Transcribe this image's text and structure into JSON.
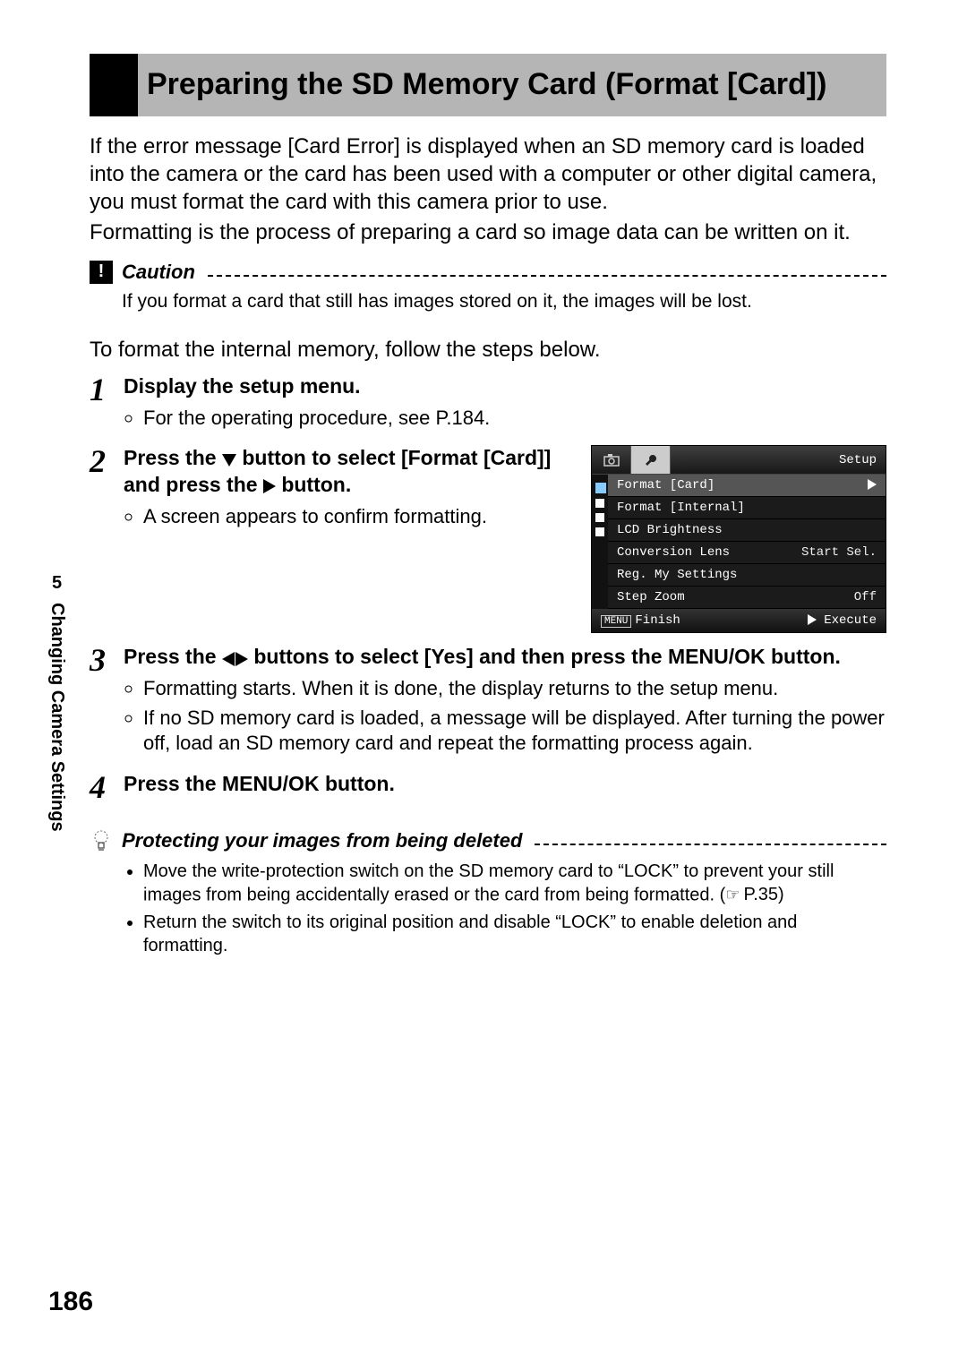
{
  "chapter": {
    "number": "5",
    "title": "Changing Camera Settings"
  },
  "title": "Preparing the SD Memory Card (Format [Card])",
  "intro": [
    "If the error message [Card Error] is displayed when an SD memory card is loaded into the camera or the card has been used with a computer or other digital camera, you must format the card with this camera prior to use.",
    "Formatting is the process of preparing a card so image data can be written on it."
  ],
  "caution": {
    "label": "Caution",
    "text": "If you format a card that still has images stored on it, the images will be lost."
  },
  "lead": "To format the internal memory, follow the steps below.",
  "steps": {
    "s1": {
      "title": "Display the setup menu.",
      "bullet": "For the operating procedure, see P.184."
    },
    "s2": {
      "title_a": "Press the ",
      "title_b": " button to select [Format [Card]] and press the ",
      "title_c": " button.",
      "bullet": "A screen appears to confirm formatting."
    },
    "s3": {
      "title_a": "Press the ",
      "title_b": " buttons to select [Yes] and then press the MENU/OK button.",
      "bullet1": "Formatting starts. When it is done, the display returns to the setup menu.",
      "bullet2": "If no SD memory card is loaded, a message will be displayed. After turning the power off, load an SD memory card and repeat the formatting process again."
    },
    "s4": {
      "title": "Press the MENU/OK button."
    }
  },
  "lcd": {
    "setup": "Setup",
    "rows": [
      {
        "label": "Format [Card]",
        "value": "",
        "selected": true,
        "chevron": true
      },
      {
        "label": "Format [Internal]",
        "value": ""
      },
      {
        "label": "LCD Brightness",
        "value": ""
      },
      {
        "label": "Conversion Lens",
        "value": "Start Sel."
      },
      {
        "label": "Reg. My Settings",
        "value": ""
      },
      {
        "label": "Step Zoom",
        "value": "Off"
      }
    ],
    "footer_left": "Finish",
    "footer_right": "Execute",
    "menu_chip": "MENU"
  },
  "tip": {
    "label": "Protecting your images from being deleted",
    "b1a": "Move the write-protection switch on the SD memory card to “LOCK” to prevent your still images from being accidentally erased or the card from being formatted. (",
    "b1b": "P.35)",
    "b2": "Return the switch to its original position and disable “LOCK” to enable deletion and formatting."
  },
  "page_number": "186"
}
